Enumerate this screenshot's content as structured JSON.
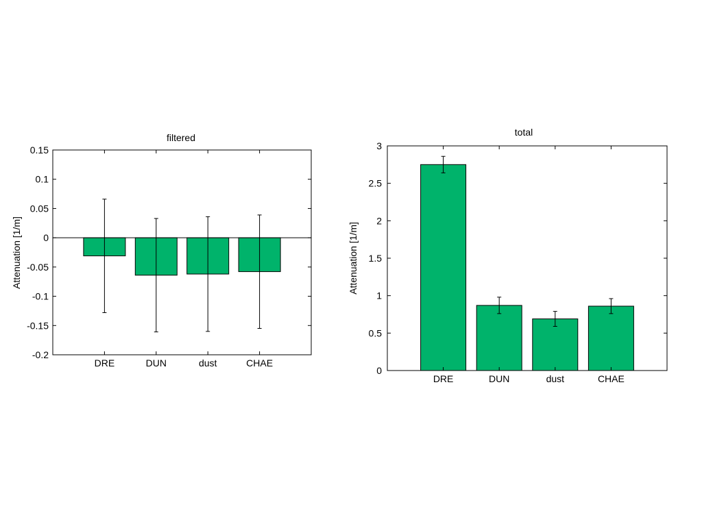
{
  "chart_data": [
    {
      "type": "bar",
      "title": "filtered",
      "xlabel": "",
      "ylabel": "Attenuation [1/m]",
      "categories": [
        "DRE",
        "DUN",
        "dust",
        "CHAE"
      ],
      "values": [
        -0.031,
        -0.064,
        -0.062,
        -0.058
      ],
      "error": [
        0.097,
        0.097,
        0.098,
        0.097
      ],
      "ylim": [
        -0.2,
        0.15
      ],
      "yticks": [
        -0.2,
        -0.15,
        -0.1,
        -0.05,
        0,
        0.05,
        0.1,
        0.15
      ],
      "ytick_labels": [
        "-0.2",
        "-0.15",
        "-0.1",
        "-0.05",
        "0",
        "0.05",
        "0.1",
        "0.15"
      ],
      "bar_color": "#00b36b",
      "grid": false,
      "legend": "none"
    },
    {
      "type": "bar",
      "title": "total",
      "xlabel": "",
      "ylabel": "Attenuation [1/m]",
      "categories": [
        "DRE",
        "DUN",
        "dust",
        "CHAE"
      ],
      "values": [
        2.75,
        0.87,
        0.69,
        0.86
      ],
      "error": [
        0.11,
        0.11,
        0.1,
        0.1
      ],
      "ylim": [
        0,
        3
      ],
      "yticks": [
        0,
        0.5,
        1,
        1.5,
        2,
        2.5,
        3
      ],
      "ytick_labels": [
        "0",
        "0.5",
        "1",
        "1.5",
        "2",
        "2.5",
        "3"
      ],
      "bar_color": "#00b36b",
      "grid": false,
      "legend": "none"
    }
  ]
}
